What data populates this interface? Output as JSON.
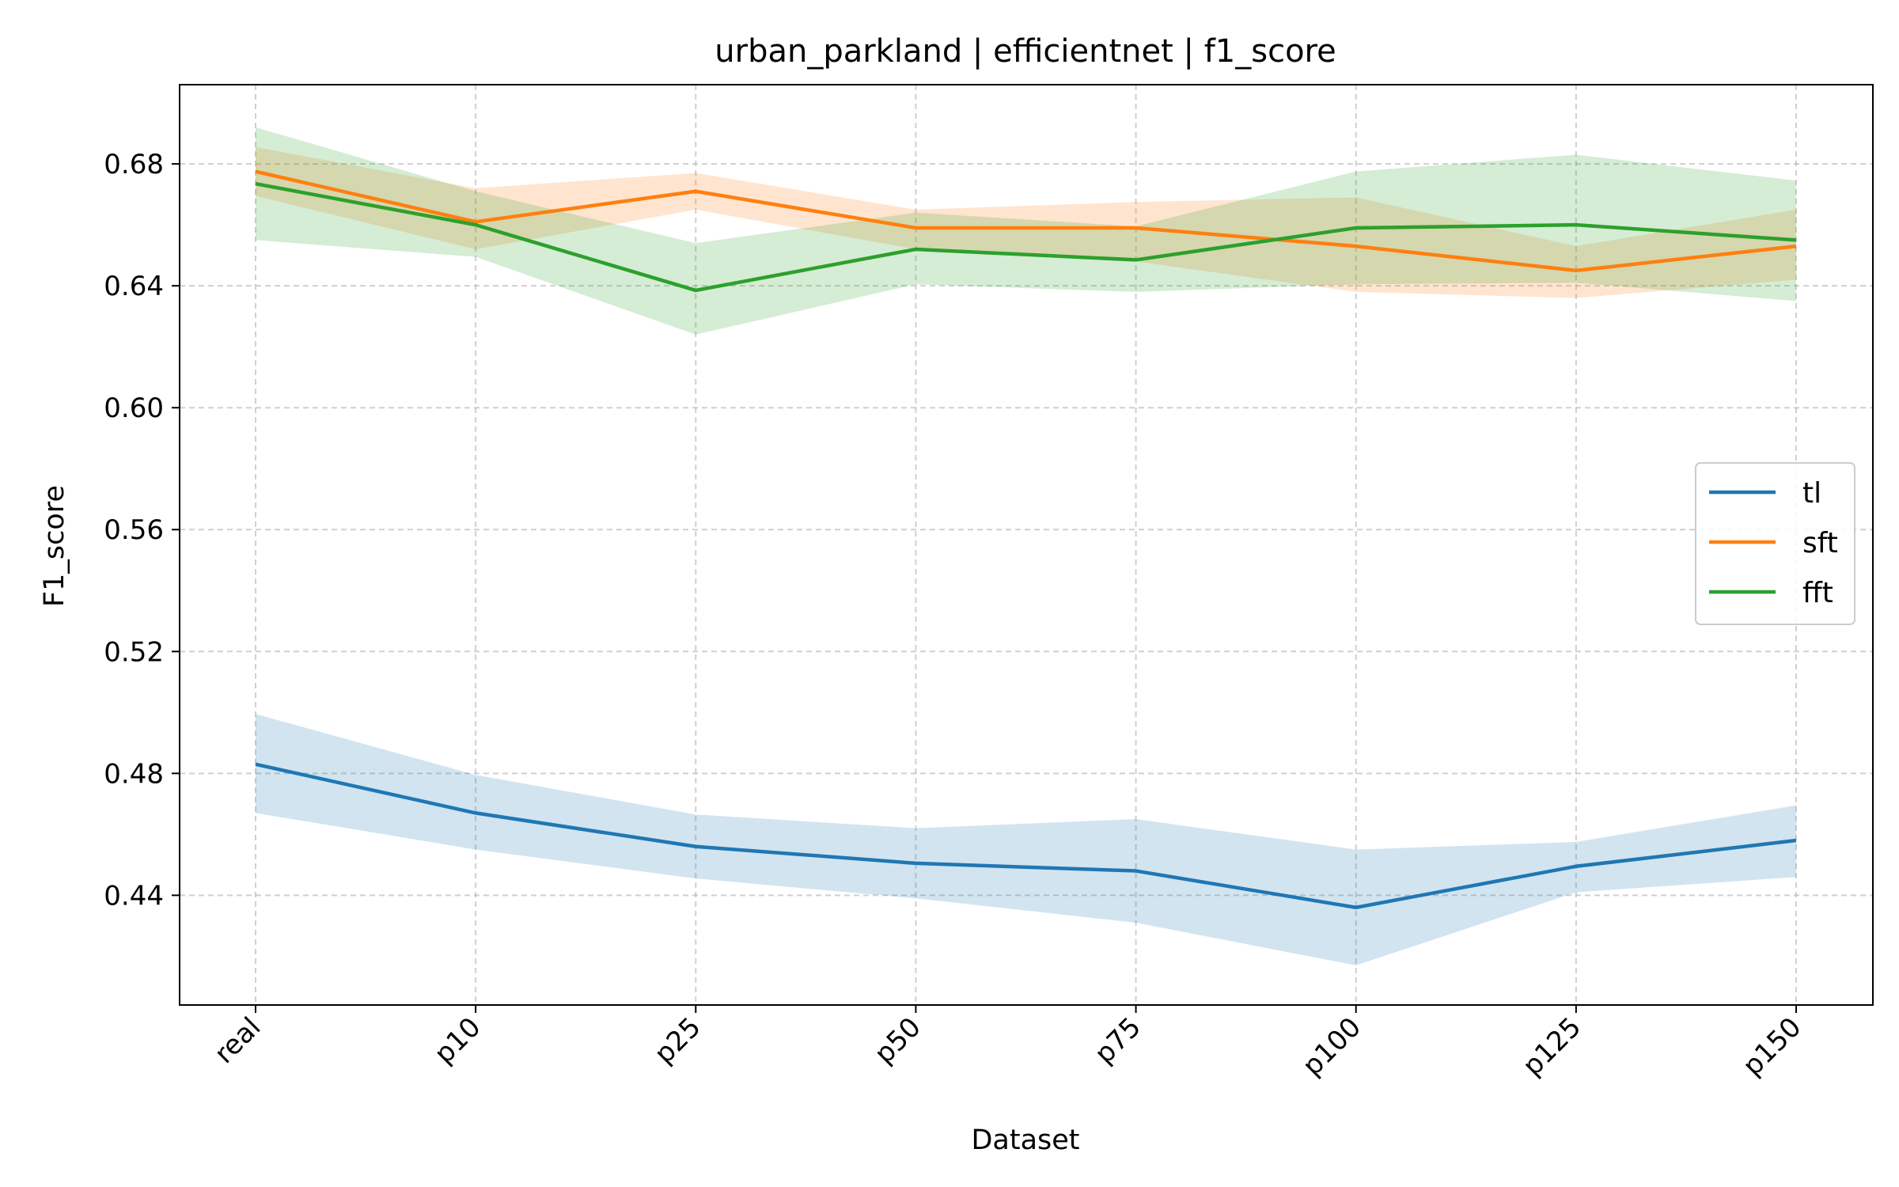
{
  "chart_data": {
    "type": "line",
    "title": "urban_parkland | efficientnet | f1_score",
    "xlabel": "Dataset",
    "ylabel": "F1_score",
    "categories": [
      "real",
      "p10",
      "p25",
      "p50",
      "p75",
      "p100",
      "p125",
      "p150"
    ],
    "ylim": [
      0.404,
      0.706
    ],
    "yticks": [
      0.44,
      0.48,
      0.52,
      0.56,
      0.6,
      0.64,
      0.68
    ],
    "ytick_labels": [
      "0.44",
      "0.48",
      "0.52",
      "0.56",
      "0.60",
      "0.64",
      "0.68"
    ],
    "grid": true,
    "legend_position": "center-right",
    "series": [
      {
        "name": "tl",
        "color": "#1f77b4",
        "values": [
          0.483,
          0.467,
          0.456,
          0.4505,
          0.448,
          0.436,
          0.4495,
          0.458
        ],
        "lower": [
          0.467,
          0.455,
          0.4455,
          0.439,
          0.431,
          0.417,
          0.441,
          0.446
        ],
        "upper": [
          0.4995,
          0.4795,
          0.4665,
          0.462,
          0.465,
          0.455,
          0.4575,
          0.4695
        ]
      },
      {
        "name": "sft",
        "color": "#ff7f0e",
        "values": [
          0.6775,
          0.661,
          0.671,
          0.659,
          0.659,
          0.653,
          0.645,
          0.653
        ],
        "lower": [
          0.6695,
          0.652,
          0.665,
          0.652,
          0.648,
          0.638,
          0.636,
          0.642
        ],
        "upper": [
          0.6855,
          0.672,
          0.677,
          0.665,
          0.6675,
          0.669,
          0.653,
          0.665
        ]
      },
      {
        "name": "fft",
        "color": "#2ca02c",
        "values": [
          0.6735,
          0.66,
          0.6385,
          0.652,
          0.6485,
          0.659,
          0.66,
          0.655
        ],
        "lower": [
          0.655,
          0.6495,
          0.624,
          0.6405,
          0.638,
          0.6405,
          0.641,
          0.635
        ],
        "upper": [
          0.692,
          0.671,
          0.654,
          0.664,
          0.6595,
          0.6775,
          0.683,
          0.6745
        ]
      }
    ]
  }
}
